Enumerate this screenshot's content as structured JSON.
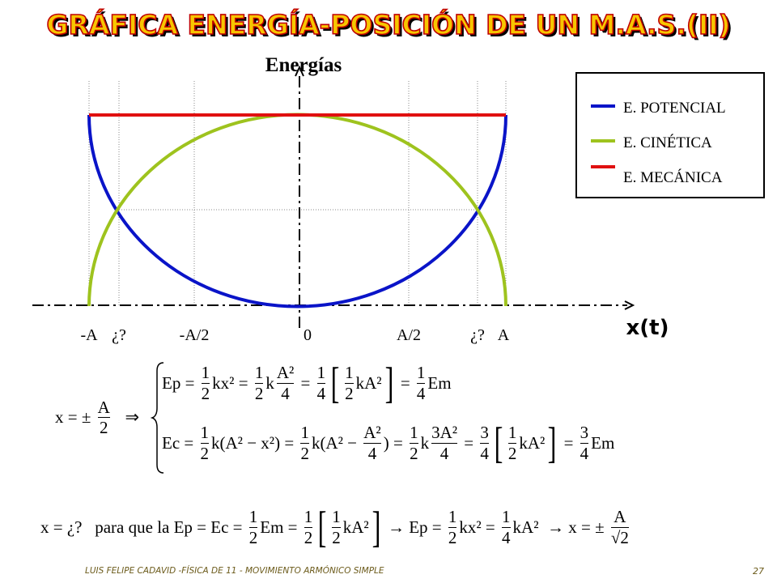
{
  "header": {
    "title": "GRÁFICA  ENERGÍA-POSICIÓN DE UN M.A.S.(II)"
  },
  "graph": {
    "y_label": "Energías",
    "x_label": "x(t)",
    "x_labels": [
      "-A",
      "¿?",
      "-A/2",
      "0",
      "A/2",
      "¿?",
      "A"
    ],
    "legend": [
      {
        "label": "E. POTENCIAL",
        "color": "#0a14c8"
      },
      {
        "label": "E. CINÉTICA",
        "color": "#9ec31e"
      },
      {
        "label": "E. MECÁNICA",
        "color": "#e01010"
      }
    ]
  },
  "equations": [
    {
      "tokens": [
        "x = ± ",
        {
          "n": "A",
          "d": "2"
        },
        "   ⇒"
      ]
    },
    {
      "tokens": [
        "Ep = ",
        {
          "n": "1",
          "d": "2"
        },
        "kx² = ",
        {
          "n": "1",
          "d": "2"
        },
        "k",
        {
          "n": "A²",
          "d": "4"
        },
        " = ",
        {
          "n": "1",
          "d": "4"
        },
        {
          "big": "["
        },
        {
          "n": "1",
          "d": "2"
        },
        "kA²",
        {
          "big": "]"
        },
        " = ",
        {
          "n": "1",
          "d": "4"
        },
        "Em"
      ]
    },
    {
      "tokens": [
        "Ec = ",
        {
          "n": "1",
          "d": "2"
        },
        "k(A² − x²) = ",
        {
          "n": "1",
          "d": "2"
        },
        "k(A² − ",
        {
          "n": "A²",
          "d": "4"
        },
        ") = ",
        {
          "n": "1",
          "d": "2"
        },
        "k",
        {
          "n": "3A²",
          "d": "4"
        },
        " = ",
        {
          "n": "3",
          "d": "4"
        },
        {
          "big": "["
        },
        {
          "n": "1",
          "d": "2"
        },
        "kA²",
        {
          "big": "]"
        },
        " = ",
        {
          "n": "3",
          "d": "4"
        },
        "Em"
      ]
    },
    {
      "tokens": [
        "x = ¿?   para que la Ep = Ec = ",
        {
          "n": "1",
          "d": "2"
        },
        "Em = ",
        {
          "n": "1",
          "d": "2"
        },
        {
          "big": "["
        },
        {
          "n": "1",
          "d": "2"
        },
        "kA²",
        {
          "big": "]"
        },
        " → Ep = ",
        {
          "n": "1",
          "d": "2"
        },
        "kx² = ",
        {
          "n": "1",
          "d": "4"
        },
        "kA²  → x = ± ",
        {
          "n": "A",
          "d": "√2"
        }
      ]
    }
  ],
  "footer": {
    "text": "LUIS FELIPE CADAVID -FÍSICA DE 11 - MOVIMIENTO ARMÓNICO SIMPLE",
    "page": "27"
  }
}
